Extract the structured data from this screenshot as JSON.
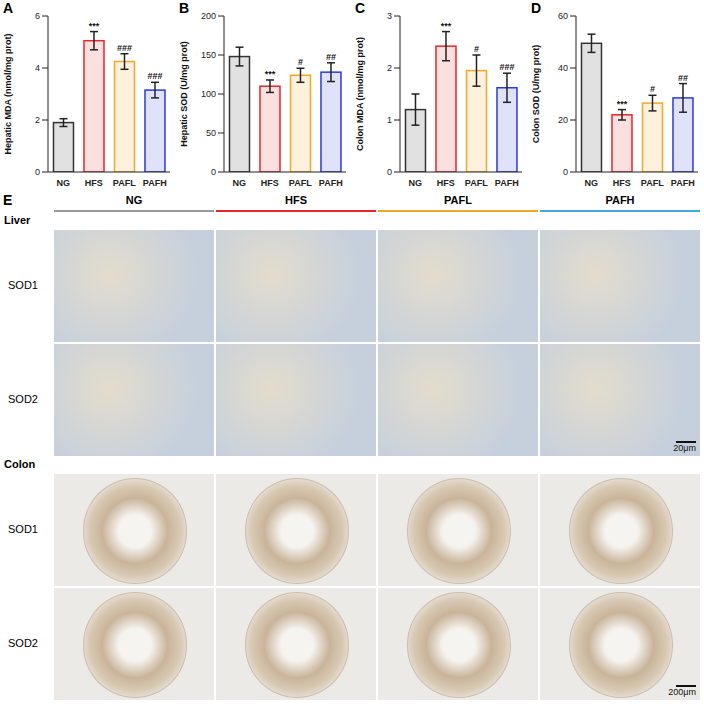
{
  "chart_data": [
    {
      "type": "bar",
      "panel_label": "A",
      "y_label": "Hepatic MDA (nmol/mg prot)",
      "categories": [
        "NG",
        "HFS",
        "PAFL",
        "PAFH"
      ],
      "values": [
        1.9,
        5.05,
        4.25,
        3.15
      ],
      "errors": [
        0.15,
        0.35,
        0.3,
        0.3
      ],
      "annotations": [
        null,
        "***",
        "###",
        "###"
      ],
      "colors": [
        "#333333",
        "#e8262a",
        "#f5a623",
        "#2b3bd9"
      ],
      "ylim": [
        0,
        6
      ],
      "yticks": [
        0,
        2,
        4,
        6
      ]
    },
    {
      "type": "bar",
      "panel_label": "B",
      "y_label": "Hepatic SOD (U/mg prot)",
      "categories": [
        "NG",
        "HFS",
        "PAFL",
        "PAFH"
      ],
      "values": [
        148,
        110,
        124,
        128
      ],
      "errors": [
        12,
        8,
        9,
        12
      ],
      "annotations": [
        null,
        "***",
        "#",
        "##"
      ],
      "colors": [
        "#333333",
        "#e8262a",
        "#f5a623",
        "#2b3bd9"
      ],
      "ylim": [
        0,
        200
      ],
      "yticks": [
        0,
        50,
        100,
        150,
        200
      ]
    },
    {
      "type": "bar",
      "panel_label": "C",
      "y_label": "Colon MDA (nmol/mg prot)",
      "categories": [
        "NG",
        "HFS",
        "PAFL",
        "PAFH"
      ],
      "values": [
        1.2,
        2.42,
        1.95,
        1.62
      ],
      "errors": [
        0.3,
        0.28,
        0.3,
        0.28
      ],
      "annotations": [
        null,
        "***",
        "#",
        "###"
      ],
      "colors": [
        "#333333",
        "#e8262a",
        "#f5a623",
        "#2b3bd9"
      ],
      "ylim": [
        0,
        3
      ],
      "yticks": [
        0,
        1,
        2,
        3
      ]
    },
    {
      "type": "bar",
      "panel_label": "D",
      "y_label": "Colon SOD (U/mg prot)",
      "categories": [
        "NG",
        "HFS",
        "PAFL",
        "PAFH"
      ],
      "values": [
        49.5,
        22,
        26.5,
        28.5
      ],
      "errors": [
        3.5,
        2,
        3,
        5.5
      ],
      "annotations": [
        null,
        "***",
        "#",
        "##"
      ],
      "colors": [
        "#333333",
        "#e8262a",
        "#f5a623",
        "#2b3bd9"
      ],
      "ylim": [
        0,
        60
      ],
      "yticks": [
        0,
        20,
        40,
        60
      ]
    }
  ],
  "panel_E": {
    "label": "E",
    "columns": [
      "NG",
      "HFS",
      "PAFL",
      "PAFH"
    ],
    "column_colors": [
      "#999999",
      "#e8262a",
      "#f5a623",
      "#3fa9e0"
    ],
    "sections": [
      {
        "name": "Liver",
        "rows": [
          "SOD1",
          "SOD2"
        ],
        "scale_bar": "20μm"
      },
      {
        "name": "Colon",
        "rows": [
          "SOD1",
          "SOD2"
        ],
        "scale_bar": "200μm"
      }
    ]
  }
}
